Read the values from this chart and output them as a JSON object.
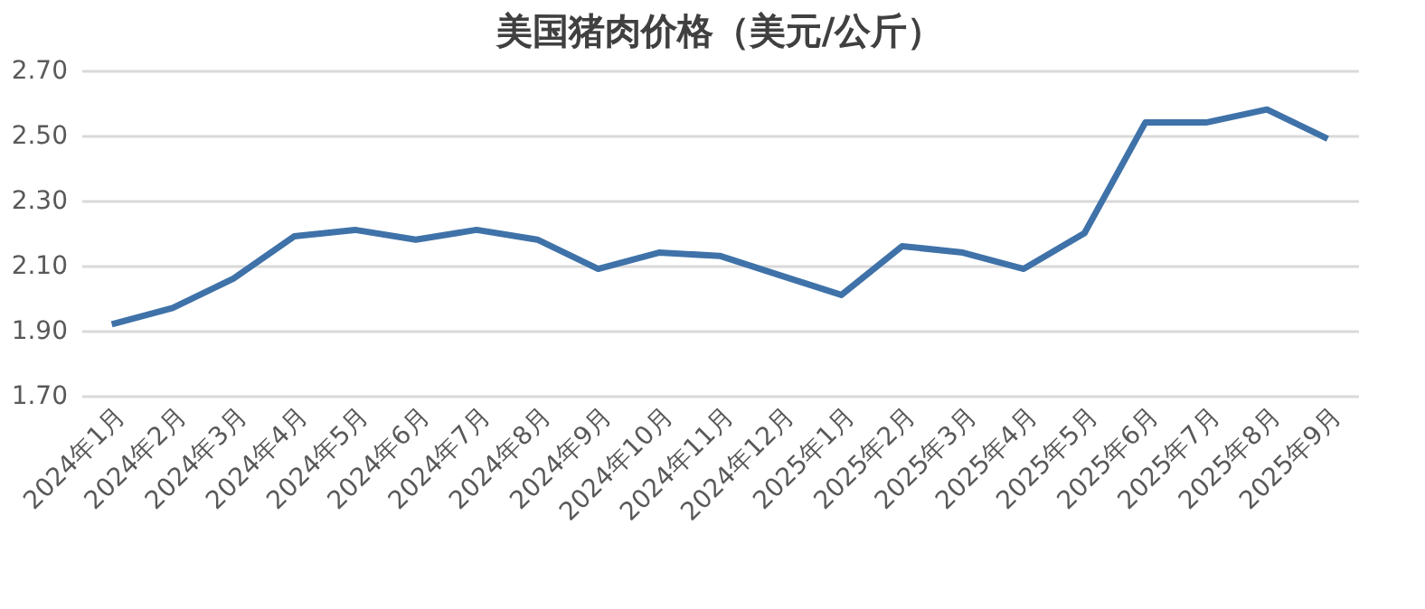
{
  "chart_data": {
    "type": "line",
    "title": "美国猪肉价格（美元/公斤）",
    "categories": [
      "2024年1月",
      "2024年2月",
      "2024年3月",
      "2024年4月",
      "2024年5月",
      "2024年6月",
      "2024年7月",
      "2024年8月",
      "2024年9月",
      "2024年10月",
      "2024年11月",
      "2024年12月",
      "2025年1月",
      "2025年2月",
      "2025年3月",
      "2025年4月",
      "2025年5月",
      "2025年6月",
      "2025年7月",
      "2025年8月",
      "2025年9月"
    ],
    "series": [
      {
        "color": "#3f72a8",
        "values": [
          1.92,
          1.97,
          2.06,
          2.19,
          2.21,
          2.18,
          2.21,
          2.18,
          2.09,
          2.14,
          2.13,
          2.07,
          2.01,
          2.16,
          2.14,
          2.09,
          2.2,
          2.54,
          2.54,
          2.58,
          2.49
        ]
      }
    ],
    "ylim": [
      1.7,
      2.7
    ],
    "yticks": [
      {
        "value": 1.7,
        "label": "1.70"
      },
      {
        "value": 1.9,
        "label": "1.90"
      },
      {
        "value": 2.1,
        "label": "2.10"
      },
      {
        "value": 2.3,
        "label": "2.30"
      },
      {
        "value": 2.5,
        "label": "2.50"
      },
      {
        "value": 2.7,
        "label": "2.70"
      }
    ],
    "grid": "y",
    "marker": "none",
    "line_style": "solid"
  }
}
